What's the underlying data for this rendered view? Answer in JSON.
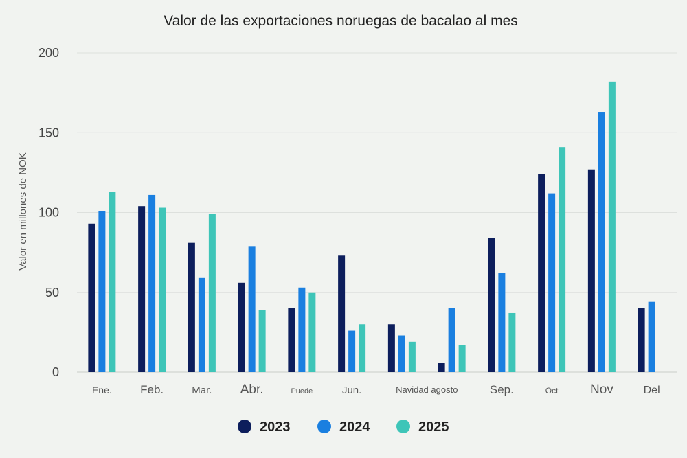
{
  "chart_data": {
    "type": "bar",
    "title": "Valor de las exportaciones noruegas de bacalao al mes",
    "xlabel": "",
    "ylabel": "Valor en millones de NOK",
    "ylim": [
      0,
      200
    ],
    "yticks": [
      0,
      50,
      100,
      150,
      200
    ],
    "grid": true,
    "legend_position": "bottom",
    "categories": [
      "Ene.",
      "Feb.",
      "Mar.",
      "Abr.",
      "Puede",
      "Jun.",
      "Navidad",
      "agosto",
      "Sep.",
      "Oct",
      "Nov",
      "Del"
    ],
    "series": [
      {
        "name": "2023",
        "color": "#0d1e5c",
        "values": [
          93,
          104,
          81,
          56,
          40,
          73,
          30,
          6,
          84,
          124,
          127,
          40
        ]
      },
      {
        "name": "2024",
        "color": "#1a7fe0",
        "values": [
          101,
          111,
          59,
          79,
          53,
          26,
          23,
          40,
          62,
          112,
          163,
          44
        ]
      },
      {
        "name": "2025",
        "color": "#3ec5b8",
        "values": [
          113,
          103,
          99,
          39,
          50,
          30,
          19,
          17,
          37,
          141,
          182,
          null
        ]
      }
    ]
  }
}
